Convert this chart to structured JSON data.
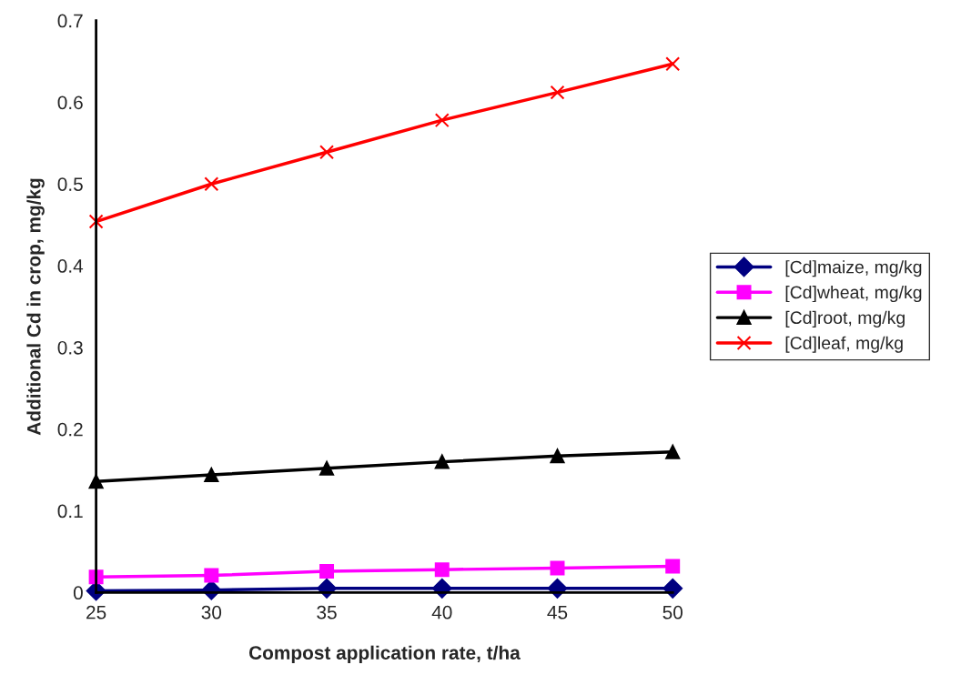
{
  "chart_data": {
    "type": "line",
    "xlabel": "Compost application rate, t/ha",
    "ylabel": "Additional Cd in crop, mg/kg",
    "x": [
      25,
      30,
      35,
      40,
      45,
      50
    ],
    "xlim": [
      25,
      50
    ],
    "xticks": [
      25,
      30,
      35,
      40,
      45,
      50
    ],
    "ylim": [
      0,
      0.7
    ],
    "yticks": [
      0,
      0.1,
      0.2,
      0.3,
      0.4,
      0.5,
      0.6,
      0.7
    ],
    "grid": false,
    "legend": "right",
    "series": [
      {
        "name": "[Cd]maize, mg/kg",
        "color": "#000080",
        "marker": "diamond",
        "values": [
          0.002,
          0.003,
          0.005,
          0.005,
          0.005,
          0.005
        ]
      },
      {
        "name": "[Cd]wheat, mg/kg",
        "color": "#ff00ff",
        "marker": "square",
        "values": [
          0.019,
          0.021,
          0.026,
          0.028,
          0.03,
          0.032
        ]
      },
      {
        "name": "[Cd]root, mg/kg",
        "color": "#000000",
        "marker": "triangle",
        "values": [
          0.136,
          0.144,
          0.152,
          0.16,
          0.167,
          0.172
        ]
      },
      {
        "name": "[Cd]leaf, mg/kg",
        "color": "#ff0000",
        "marker": "cross",
        "values": [
          0.454,
          0.5,
          0.539,
          0.578,
          0.612,
          0.647
        ]
      }
    ]
  }
}
